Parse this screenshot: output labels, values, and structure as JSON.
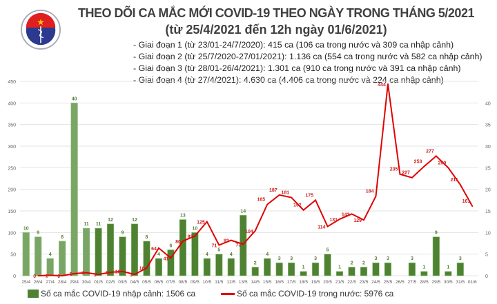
{
  "header": {
    "logo_text": "BỘ Y TẾ · MINISTRY OF HEALTH",
    "title": "THEO DÕI CA MẮC MỚI COVID-19 THEO NGÀY TRONG THÁNG 5/2021",
    "subtitle": "(từ 25/4/2021 đến 12h ngày 01/6/2021)",
    "bullets": [
      "- Giai đoạn 1 (từ 23/01-24/7/2020): 415 ca (106 ca trong nước và 309 ca nhập cảnh)",
      "- Giai đoạn 2 (từ 25/7/2020-27/01/2021): 1.136 ca (554 ca trong nước và 582 ca nhập cảnh)",
      "- Giai đoạn 3 (từ 28/01-26/4/2021): 1.301 ca (910 ca trong nước và 391 ca nhập cảnh)",
      "- Giai đoạn 4 (từ 27/4/2021): 4.630 ca (4.406 ca trong nước và 224 ca nhập cảnh)"
    ]
  },
  "chart_data": {
    "type": "bar+line",
    "categories": [
      "25/4",
      "26/4",
      "27/4",
      "28/4",
      "29/4",
      "30/4",
      "01/5",
      "02/5",
      "03/5",
      "04/5",
      "05/5",
      "06/5",
      "07/5",
      "08/5",
      "09/5",
      "10/5",
      "11/5",
      "12/5",
      "13/5",
      "14/5",
      "15/5",
      "16/5",
      "17/5",
      "18/5",
      "19/5",
      "20/5",
      "21/5",
      "22/5",
      "23/5",
      "24/5",
      "25/5",
      "26/5",
      "27/5",
      "28/5",
      "29/5",
      "30/5",
      "31/5",
      "01/6"
    ],
    "left_axis": {
      "range": [
        0,
        450
      ],
      "ticks": [
        0,
        50,
        100,
        150,
        200,
        250,
        300,
        350,
        400,
        450
      ]
    },
    "right_axis": {
      "range": [
        0,
        45
      ],
      "ticks": [
        0,
        5,
        10,
        15,
        20,
        25,
        30,
        35,
        40
      ]
    },
    "grid": true,
    "legend_placement": "bottom",
    "series": [
      {
        "name": "Số ca mắc COVID-19 nhập cảnh: 1506 ca",
        "kind": "bar",
        "axis": "right",
        "color": "#4e8132",
        "early_color": "#7aa566",
        "values": [
          10,
          9,
          4,
          8,
          40,
          11,
          11,
          12,
          9,
          12,
          8,
          4,
          6,
          13,
          10,
          4,
          5,
          4,
          14,
          2,
          4,
          3,
          3,
          1,
          3,
          5,
          1,
          2,
          2,
          3,
          3,
          null,
          3,
          1,
          9,
          1,
          3,
          null
        ]
      },
      {
        "name": "Số ca mắc COVID-19 trong nước: 5976 ca",
        "kind": "line",
        "axis": "left",
        "color": "#e00000",
        "values": [
          null,
          0,
          1,
          0,
          5,
          7,
          3,
          8,
          10,
          3,
          18,
          64,
          41,
          80,
          92,
          125,
          71,
          82,
          73,
          104,
          165,
          187,
          181,
          152,
          175,
          114,
          131,
          143,
          129,
          184,
          444,
          235,
          227,
          253,
          277,
          250,
          211,
          161
        ]
      }
    ]
  }
}
